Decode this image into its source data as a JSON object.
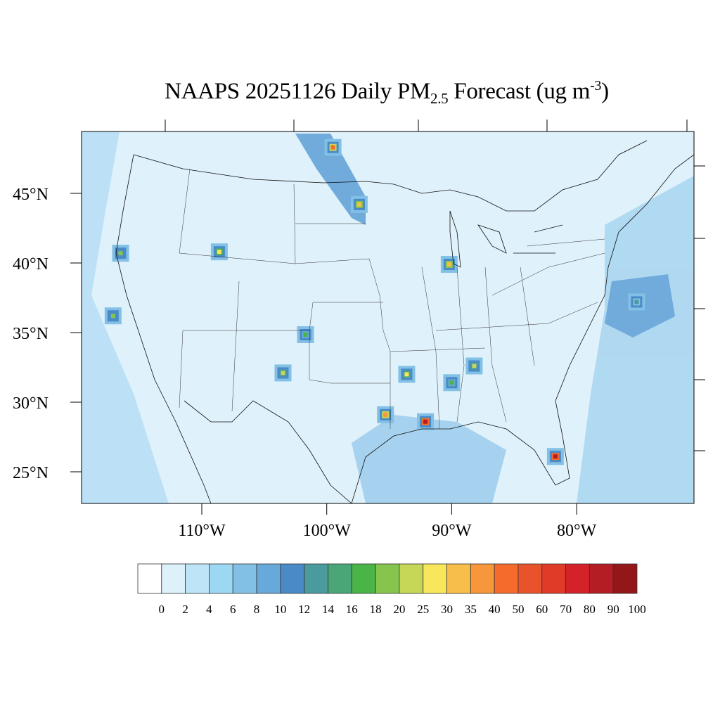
{
  "title": {
    "main": "NAAPS 20251126 Daily PM",
    "subscript": "2.5",
    "mid": " Forecast (ug m",
    "superscript": "-3",
    "end": ")"
  },
  "map": {
    "region": "Contiguous United States",
    "lat_labels": [
      "45°N",
      "40°N",
      "35°N",
      "30°N",
      "25°N"
    ],
    "lat_values": [
      45,
      40,
      35,
      30,
      25
    ],
    "lon_labels": [
      "110°W",
      "100°W",
      "90°W",
      "80°W"
    ],
    "lon_values": [
      -110,
      -100,
      -90,
      -80
    ],
    "background_color": "#dff1fa",
    "hotspots": [
      {
        "lon": -99.5,
        "lat": 48.3,
        "value": 40
      },
      {
        "lon": -97.4,
        "lat": 44.2,
        "value": 30
      },
      {
        "lon": -116.5,
        "lat": 40.7,
        "value": 18
      },
      {
        "lon": -117.1,
        "lat": 36.2,
        "value": 18
      },
      {
        "lon": -108.6,
        "lat": 40.8,
        "value": 25
      },
      {
        "lon": -90.2,
        "lat": 39.9,
        "value": 30
      },
      {
        "lon": -101.7,
        "lat": 34.85,
        "value": 16
      },
      {
        "lon": -103.5,
        "lat": 32.1,
        "value": 20
      },
      {
        "lon": -92.1,
        "lat": 28.6,
        "value": 80
      },
      {
        "lon": -81.7,
        "lat": 26.1,
        "value": 80
      },
      {
        "lon": -95.3,
        "lat": 29.1,
        "value": 35
      },
      {
        "lon": -93.6,
        "lat": 32.0,
        "value": 25
      },
      {
        "lon": -90.0,
        "lat": 31.4,
        "value": 16
      },
      {
        "lon": -88.2,
        "lat": 32.6,
        "value": 20
      },
      {
        "lon": -75.2,
        "lat": 37.2,
        "value": 12
      }
    ]
  },
  "colorbar": {
    "labels": [
      "0",
      "2",
      "4",
      "6",
      "8",
      "10",
      "12",
      "14",
      "16",
      "18",
      "20",
      "25",
      "30",
      "35",
      "40",
      "50",
      "60",
      "70",
      "80",
      "90",
      "100"
    ],
    "colors": [
      "#ffffff",
      "#ddf1fa",
      "#bde5f7",
      "#9cd7f4",
      "#82c0e6",
      "#67a9da",
      "#4a8bc7",
      "#4a9a9e",
      "#4aa677",
      "#4ab547",
      "#85c54d",
      "#c6d757",
      "#f8e75a",
      "#f8be4a",
      "#f7963a",
      "#f56b2c",
      "#e9532b",
      "#df3b28",
      "#d42229",
      "#b41d23",
      "#931619"
    ]
  }
}
